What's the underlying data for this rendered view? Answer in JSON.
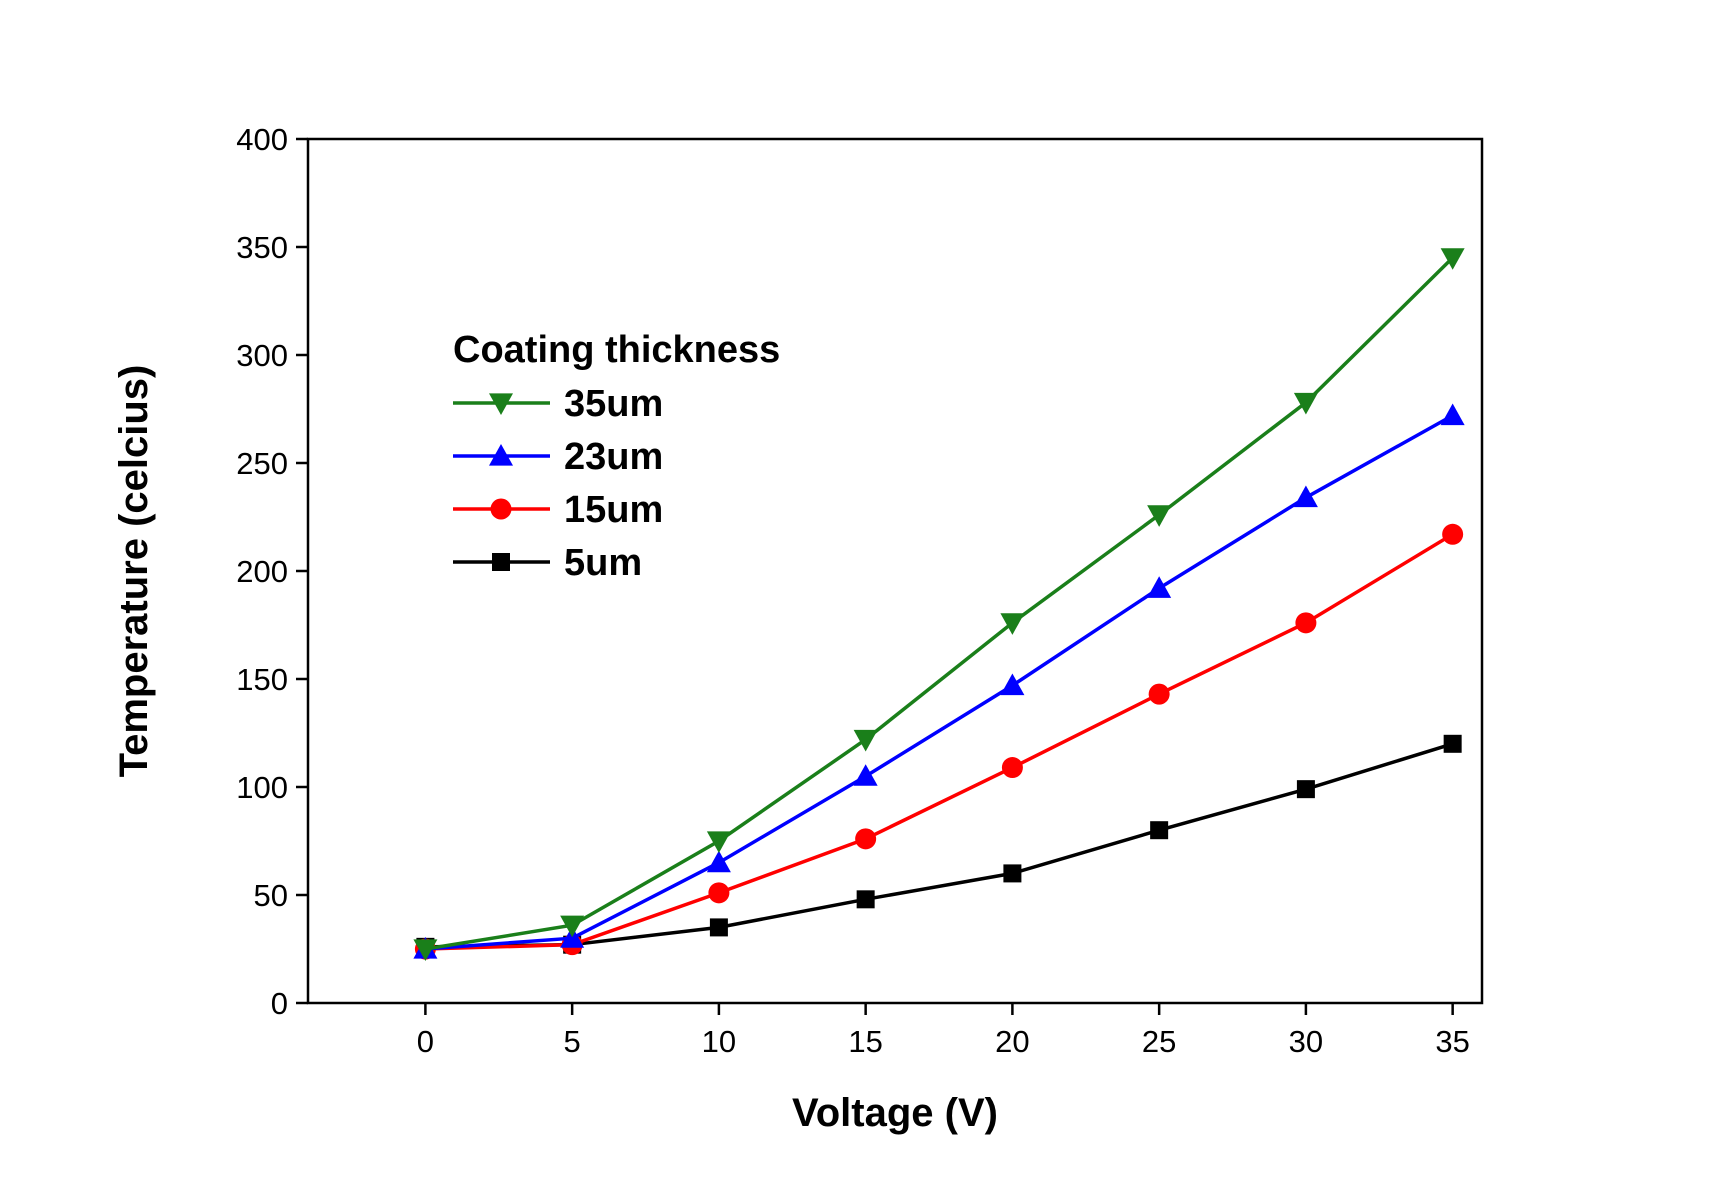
{
  "chart_data": {
    "type": "line",
    "xlabel": "Voltage (V)",
    "ylabel": "Temperature (celcius)",
    "xlim": [
      -4,
      36
    ],
    "ylim": [
      0,
      400
    ],
    "x_ticks": [
      0,
      5,
      10,
      15,
      20,
      25,
      30,
      35
    ],
    "y_ticks": [
      0,
      50,
      100,
      150,
      200,
      250,
      300,
      350,
      400
    ],
    "grid": false,
    "legend": {
      "title": "Coating thickness",
      "placement": "top-left"
    },
    "x": [
      0,
      5,
      10,
      15,
      20,
      25,
      30,
      35
    ],
    "series": [
      {
        "name": "35um",
        "color": "#1a7f1a",
        "marker": "triangle-down",
        "values": [
          25,
          36,
          75,
          122,
          176,
          226,
          278,
          345
        ]
      },
      {
        "name": "23um",
        "color": "#0000ff",
        "marker": "triangle-up",
        "values": [
          25,
          30,
          65,
          105,
          147,
          192,
          234,
          272
        ]
      },
      {
        "name": "15um",
        "color": "#ff0000",
        "marker": "circle",
        "values": [
          25,
          27,
          51,
          76,
          109,
          143,
          176,
          217
        ]
      },
      {
        "name": "5um",
        "color": "#000000",
        "marker": "square",
        "values": [
          26,
          27,
          35,
          48,
          60,
          80,
          99,
          120
        ]
      }
    ]
  }
}
